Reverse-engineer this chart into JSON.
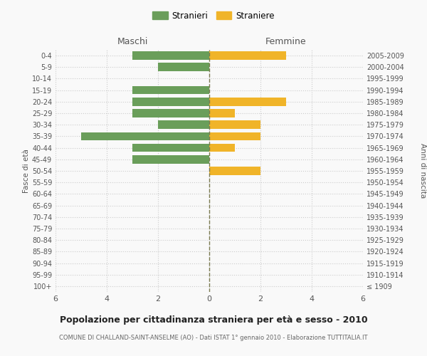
{
  "age_groups": [
    "100+",
    "95-99",
    "90-94",
    "85-89",
    "80-84",
    "75-79",
    "70-74",
    "65-69",
    "60-64",
    "55-59",
    "50-54",
    "45-49",
    "40-44",
    "35-39",
    "30-34",
    "25-29",
    "20-24",
    "15-19",
    "10-14",
    "5-9",
    "0-4"
  ],
  "birth_years": [
    "≤ 1909",
    "1910-1914",
    "1915-1919",
    "1920-1924",
    "1925-1929",
    "1930-1934",
    "1935-1939",
    "1940-1944",
    "1945-1949",
    "1950-1954",
    "1955-1959",
    "1960-1964",
    "1965-1969",
    "1970-1974",
    "1975-1979",
    "1980-1984",
    "1985-1989",
    "1990-1994",
    "1995-1999",
    "2000-2004",
    "2005-2009"
  ],
  "males": [
    0,
    0,
    0,
    0,
    0,
    0,
    0,
    0,
    0,
    0,
    0,
    3,
    3,
    5,
    2,
    3,
    3,
    3,
    0,
    2,
    3
  ],
  "females": [
    0,
    0,
    0,
    0,
    0,
    0,
    0,
    0,
    0,
    0,
    2,
    0,
    1,
    2,
    2,
    1,
    3,
    0,
    0,
    0,
    3
  ],
  "male_color": "#6a9e5a",
  "female_color": "#f0b429",
  "title": "Popolazione per cittadinanza straniera per età e sesso - 2010",
  "subtitle": "COMUNE DI CHALLAND-SAINT-ANSELME (AO) - Dati ISTAT 1° gennaio 2010 - Elaborazione TUTTITALIA.IT",
  "ylabel_left": "Fasce di età",
  "ylabel_right": "Anni di nascita",
  "header_left": "Maschi",
  "header_right": "Femmine",
  "legend_male": "Stranieri",
  "legend_female": "Straniere",
  "xlim": 6,
  "background_color": "#f9f9f9",
  "grid_color": "#cccccc",
  "center_line_color": "#7a7a50",
  "text_color": "#555555",
  "spine_color": "#cccccc"
}
